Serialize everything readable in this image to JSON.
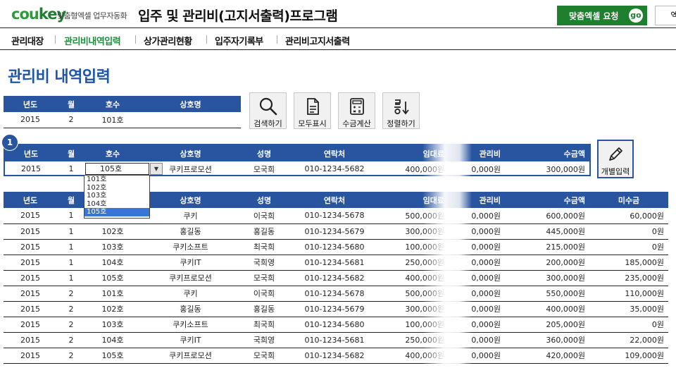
{
  "header": {
    "logo": "coukey",
    "logo_a": "cou",
    "logo_b": "key",
    "tagline": "맞춤형엑셀 업무자동화",
    "app_title": "입주 및 관리비(고지서출력)프로그램",
    "request_button": "맞춤엑셀 요청",
    "go_label": "go",
    "partial_button": "엑"
  },
  "nav": {
    "items": [
      {
        "label": "관리대장"
      },
      {
        "label": "관리비내역입력"
      },
      {
        "label": "상가관리현황"
      },
      {
        "label": "입주자기록부"
      },
      {
        "label": "관리비고지서출력"
      }
    ],
    "active_index": 1
  },
  "page_title": "관리비 내역입력",
  "search_table": {
    "headers": [
      "년도",
      "월",
      "호수",
      "상호명"
    ],
    "row": [
      "2015",
      "2",
      "101호",
      ""
    ]
  },
  "action_buttons": [
    {
      "label": "검색하기",
      "icon": "search-icon"
    },
    {
      "label": "모두표시",
      "icon": "document-icon"
    },
    {
      "label": "수금계산",
      "icon": "calculator-icon"
    },
    {
      "label": "정렬하기",
      "icon": "sort-icon"
    }
  ],
  "step_badge": "1",
  "input_table": {
    "headers": [
      "년도",
      "월",
      "호수",
      "상호명",
      "성명",
      "연락처",
      "임대료",
      "관리비",
      "수금액"
    ],
    "row": [
      "2015",
      "1",
      "105호",
      "쿠키프로모션",
      "모국희",
      "010-1234-5682",
      "400,000원",
      "0,000원",
      "300,000원"
    ]
  },
  "dropdown": {
    "options": [
      "101호",
      "102호",
      "103호",
      "104호",
      "105호"
    ],
    "selected_index": 4
  },
  "individual_button": {
    "label": "개별입력",
    "icon": "pencil-icon"
  },
  "list_table": {
    "headers": [
      "년도",
      "월",
      "호수",
      "상호명",
      "성명",
      "연락처",
      "임대료",
      "관리비",
      "수금액",
      "미수금"
    ],
    "rows": [
      [
        "2015",
        "1",
        "101호",
        "쿠키",
        "이국희",
        "010-1234-5678",
        "500,000원",
        "0,000원",
        "600,000원",
        "60,000원"
      ],
      [
        "2015",
        "1",
        "102호",
        "홍길동",
        "홍길동",
        "010-1234-5679",
        "300,000원",
        "0,000원",
        "445,000원",
        "0원"
      ],
      [
        "2015",
        "1",
        "103호",
        "쿠키소프트",
        "최국희",
        "010-1234-5680",
        "100,000원",
        "0,000원",
        "215,000원",
        "0원"
      ],
      [
        "2015",
        "1",
        "104호",
        "쿠키IT",
        "국희영",
        "010-1234-5681",
        "250,000원",
        "0,000원",
        "200,000원",
        "185,000원"
      ],
      [
        "2015",
        "1",
        "105호",
        "쿠키프로모션",
        "모국희",
        "010-1234-5682",
        "400,000원",
        "0,000원",
        "300,000원",
        "235,000원"
      ],
      [
        "2015",
        "2",
        "101호",
        "쿠키",
        "이국희",
        "010-1234-5678",
        "500,000원",
        "0,000원",
        "550,000원",
        "110,000원"
      ],
      [
        "2015",
        "2",
        "102호",
        "홍길동",
        "홍길동",
        "010-1234-5679",
        "300,000원",
        "0,000원",
        "400,000원",
        "35,000원"
      ],
      [
        "2015",
        "2",
        "103호",
        "쿠키소프트",
        "최국희",
        "010-1234-5680",
        "100,000원",
        "0,000원",
        "205,000원",
        "0원"
      ],
      [
        "2015",
        "2",
        "104호",
        "쿠키IT",
        "국희영",
        "010-1234-5681",
        "250,000원",
        "0,000원",
        "360,000원",
        "22,000원"
      ],
      [
        "2015",
        "2",
        "105호",
        "쿠키프로모션",
        "모국희",
        "010-1234-5682",
        "400,000원",
        "0,000원",
        "420,000원",
        "109,000원"
      ]
    ]
  },
  "colors": {
    "brand_green": "#1e7f2f",
    "header_blue": "#2955a0",
    "title_blue": "#1f55a8",
    "nav_active": "#1e8f3a"
  }
}
